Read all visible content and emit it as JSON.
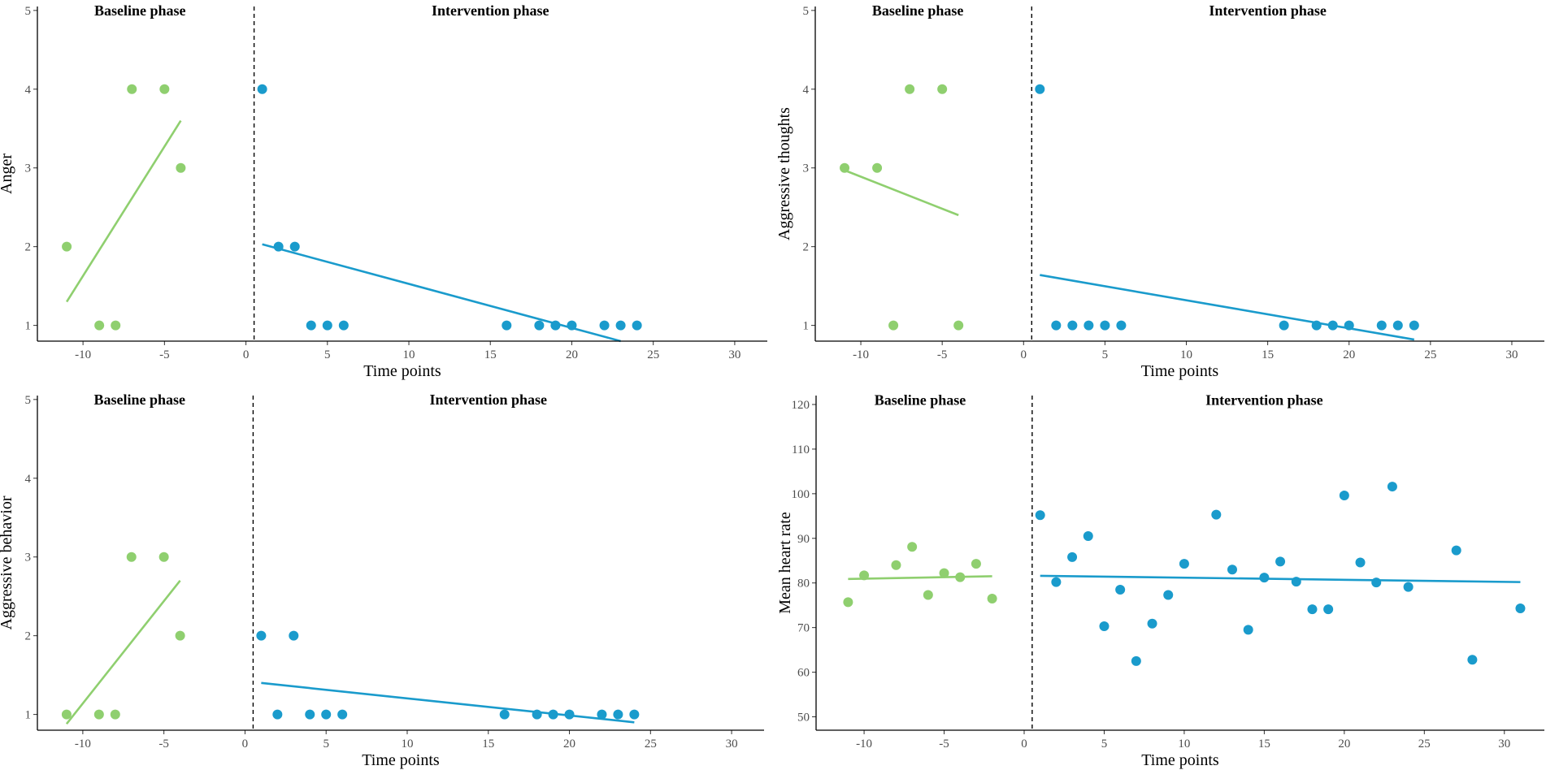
{
  "figure": {
    "colors": {
      "baseline": "#8fcf6f",
      "intervention": "#1a9bcc",
      "axis": "#000000",
      "divider": "#000000"
    }
  },
  "chart_data": [
    {
      "type": "scatter",
      "id": "anger",
      "ylabel": "Anger",
      "xlabel": "Time points",
      "xlim": [
        -12.8,
        32
      ],
      "ylim": [
        0.8,
        5.05
      ],
      "xticks": [
        -10,
        -5,
        0,
        5,
        10,
        15,
        20,
        25,
        30
      ],
      "yticks": [
        1,
        2,
        3,
        4,
        5
      ],
      "phase_change": 0.5,
      "annotations": [
        {
          "text": "Baseline phase",
          "x": -6.5,
          "y": 5
        },
        {
          "text": "Intervention phase",
          "x": 15,
          "y": 5
        }
      ],
      "series": [
        {
          "name": "Baseline phase",
          "color": "#8fcf6f",
          "points": [
            [
              -11,
              2
            ],
            [
              -9,
              1
            ],
            [
              -8,
              1
            ],
            [
              -7,
              4
            ],
            [
              -5,
              4
            ],
            [
              -4,
              3
            ]
          ],
          "trend": [
            [
              -11,
              1.3
            ],
            [
              -4,
              3.6
            ]
          ]
        },
        {
          "name": "Intervention phase",
          "color": "#1a9bcc",
          "points": [
            [
              1,
              4
            ],
            [
              2,
              2
            ],
            [
              3,
              2
            ],
            [
              4,
              1
            ],
            [
              5,
              1
            ],
            [
              6,
              1
            ],
            [
              16,
              1
            ],
            [
              18,
              1
            ],
            [
              19,
              1
            ],
            [
              20,
              1
            ],
            [
              22,
              1
            ],
            [
              23,
              1
            ],
            [
              24,
              1
            ]
          ],
          "trend": [
            [
              1,
              2.03
            ],
            [
              23,
              0.8
            ]
          ]
        }
      ]
    },
    {
      "type": "scatter",
      "id": "aggressive-thoughts",
      "ylabel": "Aggressive thoughts",
      "xlabel": "Time points",
      "xlim": [
        -12.8,
        32
      ],
      "ylim": [
        0.8,
        5.05
      ],
      "xticks": [
        -10,
        -5,
        0,
        5,
        10,
        15,
        20,
        25,
        30
      ],
      "yticks": [
        1,
        2,
        3,
        4,
        5
      ],
      "phase_change": 0.5,
      "annotations": [
        {
          "text": "Baseline phase",
          "x": -6.5,
          "y": 5
        },
        {
          "text": "Intervention phase",
          "x": 15,
          "y": 5
        }
      ],
      "series": [
        {
          "name": "Baseline phase",
          "color": "#8fcf6f",
          "points": [
            [
              -11,
              3
            ],
            [
              -9,
              3
            ],
            [
              -8,
              1
            ],
            [
              -7,
              4
            ],
            [
              -5,
              4
            ],
            [
              -4,
              1
            ]
          ],
          "trend": [
            [
              -11,
              2.97
            ],
            [
              -4,
              2.4
            ]
          ]
        },
        {
          "name": "Intervention phase",
          "color": "#1a9bcc",
          "points": [
            [
              1,
              4
            ],
            [
              2,
              1
            ],
            [
              3,
              1
            ],
            [
              4,
              1
            ],
            [
              5,
              1
            ],
            [
              6,
              1
            ],
            [
              16,
              1
            ],
            [
              18,
              1
            ],
            [
              19,
              1
            ],
            [
              20,
              1
            ],
            [
              22,
              1
            ],
            [
              23,
              1
            ],
            [
              24,
              1
            ]
          ],
          "trend": [
            [
              1,
              1.64
            ],
            [
              24,
              0.82
            ]
          ]
        }
      ]
    },
    {
      "type": "scatter",
      "id": "aggressive-behavior",
      "ylabel": "Aggressive behavior",
      "xlabel": "Time points",
      "xlim": [
        -12.8,
        32
      ],
      "ylim": [
        0.8,
        5.05
      ],
      "xticks": [
        -10,
        -5,
        0,
        5,
        10,
        15,
        20,
        25,
        30
      ],
      "yticks": [
        1,
        2,
        3,
        4,
        5
      ],
      "phase_change": 0.5,
      "annotations": [
        {
          "text": "Baseline phase",
          "x": -6.5,
          "y": 5
        },
        {
          "text": "Intervention phase",
          "x": 15,
          "y": 5
        }
      ],
      "series": [
        {
          "name": "Baseline phase",
          "color": "#8fcf6f",
          "points": [
            [
              -11,
              1
            ],
            [
              -9,
              1
            ],
            [
              -8,
              1
            ],
            [
              -7,
              3
            ],
            [
              -5,
              3
            ],
            [
              -4,
              2
            ]
          ],
          "trend": [
            [
              -11,
              0.88
            ],
            [
              -4,
              2.7
            ]
          ]
        },
        {
          "name": "Intervention phase",
          "color": "#1a9bcc",
          "points": [
            [
              1,
              2
            ],
            [
              2,
              1
            ],
            [
              3,
              2
            ],
            [
              4,
              1
            ],
            [
              5,
              1
            ],
            [
              6,
              1
            ],
            [
              16,
              1
            ],
            [
              18,
              1
            ],
            [
              19,
              1
            ],
            [
              20,
              1
            ],
            [
              22,
              1
            ],
            [
              23,
              1
            ],
            [
              24,
              1
            ]
          ],
          "trend": [
            [
              1,
              1.4
            ],
            [
              24,
              0.9
            ]
          ]
        }
      ]
    },
    {
      "type": "scatter",
      "id": "mean-heart-rate",
      "ylabel": "Mean heart rate",
      "xlabel": "Time points",
      "xlim": [
        -13,
        32.5
      ],
      "ylim": [
        47,
        122
      ],
      "xticks": [
        -10,
        -5,
        0,
        5,
        10,
        15,
        20,
        25,
        30
      ],
      "yticks": [
        50,
        60,
        70,
        80,
        90,
        100,
        110,
        120
      ],
      "phase_change": 0.5,
      "annotations": [
        {
          "text": "Baseline phase",
          "x": -6.5,
          "y": 121
        },
        {
          "text": "Intervention phase",
          "x": 15,
          "y": 121
        }
      ],
      "series": [
        {
          "name": "Baseline phase",
          "color": "#8fcf6f",
          "points": [
            [
              -11,
              75.7
            ],
            [
              -10,
              81.7
            ],
            [
              -8,
              84
            ],
            [
              -7,
              88.1
            ],
            [
              -6,
              77.3
            ],
            [
              -5,
              82.2
            ],
            [
              -4,
              81.3
            ],
            [
              -3,
              84.3
            ],
            [
              -2,
              76.5
            ]
          ],
          "trend": [
            [
              -11,
              80.9
            ],
            [
              -2,
              81.5
            ]
          ]
        },
        {
          "name": "Intervention phase",
          "color": "#1a9bcc",
          "points": [
            [
              1,
              95.2
            ],
            [
              2,
              80.2
            ],
            [
              3,
              85.8
            ],
            [
              4,
              90.5
            ],
            [
              5,
              70.3
            ],
            [
              6,
              78.5
            ],
            [
              7,
              62.5
            ],
            [
              8,
              70.9
            ],
            [
              9,
              77.3
            ],
            [
              10,
              84.3
            ],
            [
              12,
              95.3
            ],
            [
              13,
              83
            ],
            [
              14,
              69.5
            ],
            [
              15,
              81.2
            ],
            [
              16,
              84.8
            ],
            [
              17,
              80.3
            ],
            [
              18,
              74.1
            ],
            [
              19,
              74.1
            ],
            [
              20,
              99.6
            ],
            [
              21,
              84.6
            ],
            [
              22,
              80.1
            ],
            [
              23,
              101.6
            ],
            [
              24,
              79.1
            ],
            [
              27,
              87.3
            ],
            [
              28,
              62.8
            ],
            [
              31,
              74.3
            ]
          ],
          "trend": [
            [
              1,
              81.6
            ],
            [
              31,
              80.2
            ]
          ]
        }
      ]
    }
  ]
}
